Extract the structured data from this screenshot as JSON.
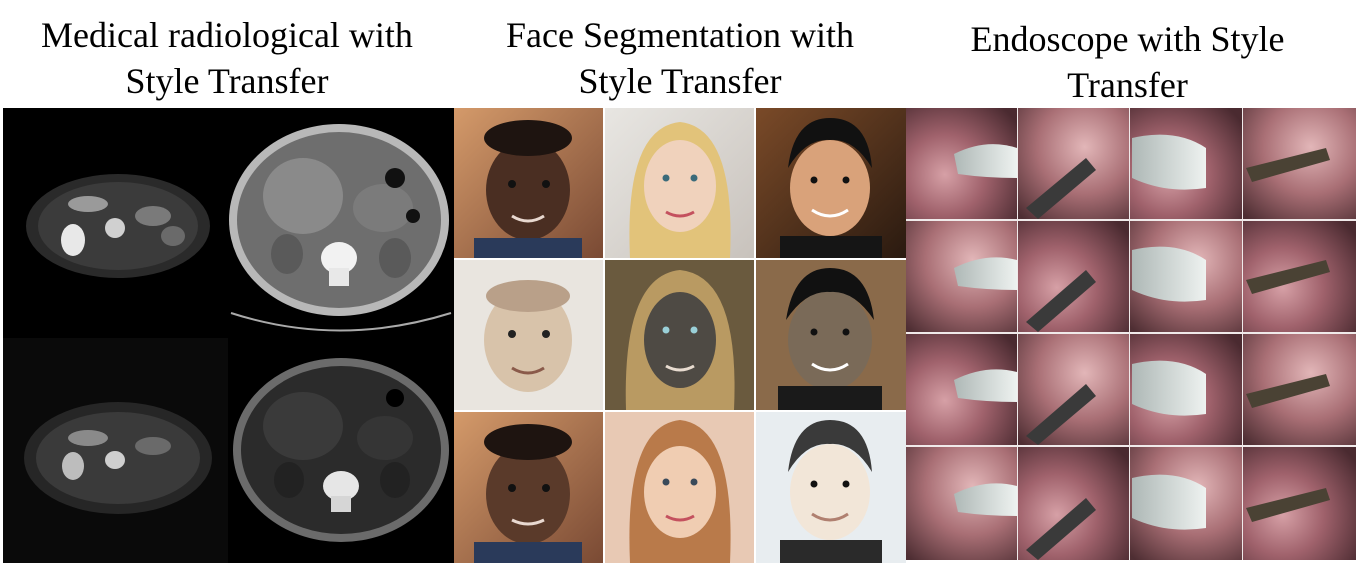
{
  "panels": [
    {
      "id": "medical",
      "title": "Medical radiological with\nStyle Transfer"
    },
    {
      "id": "face",
      "title": "Face Segmentation with\nStyle Transfer"
    },
    {
      "id": "endoscope",
      "title": "Endoscope with Style\nTransfer"
    }
  ],
  "colors": {
    "background": "#ffffff",
    "text": "#000000",
    "medical_bg": "#000000",
    "skin_dark": "#5a3a2a",
    "skin_light": "#e7c8a8",
    "hair_blond": "#e2c37a",
    "endo_tissue": "#9b5e68",
    "endo_tool": "#c9d2cf"
  },
  "images": {
    "medical": {
      "rows": 2,
      "cols": 2
    },
    "face": {
      "rows": 3,
      "cols": 3
    },
    "endoscope": {
      "rows": 4,
      "cols": 4
    }
  }
}
